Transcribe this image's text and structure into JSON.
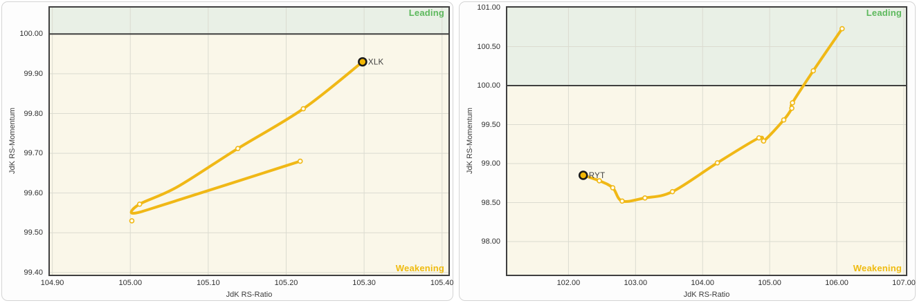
{
  "colors": {
    "tail": "#F0B816",
    "head_fill": "#F2B705",
    "head_stroke": "#1a1a1a",
    "marker_fill": "#FFFCEE",
    "leading_text": "#5CB85C",
    "weakening_text": "#EFBB0F",
    "leading_bg": "#E9F0E6",
    "weakening_bg": "#FAF7E9",
    "grid": "#DBDBD0",
    "frame": "#3f3f3f",
    "symbol_label_text": "#3f3f3f"
  },
  "chart_data": [
    {
      "type": "line",
      "title": "XLK RRG tail",
      "symbol": "XLK",
      "xlabel": "JdK RS-Ratio",
      "ylabel": "JdK RS-Momentum",
      "xlim": [
        104.895,
        105.41
      ],
      "ylim": [
        99.391,
        100.07
      ],
      "x_ticks": [
        104.9,
        105.0,
        105.1,
        105.2,
        105.3,
        105.4
      ],
      "y_ticks": [
        99.4,
        99.5,
        99.6,
        99.7,
        99.8,
        99.9,
        100.0
      ],
      "center_line_y": 100.0,
      "grid": true,
      "quadrants": {
        "top_label": "Leading",
        "bottom_label": "Weakening"
      },
      "head": {
        "x": 105.298,
        "y": 99.93,
        "label": "XLK"
      },
      "tail_curve": [
        [
          105.218,
          99.68
        ],
        [
          105.05,
          99.575
        ],
        [
          105.004,
          99.549
        ],
        [
          105.012,
          99.572
        ],
        [
          105.06,
          99.615
        ],
        [
          105.138,
          99.712
        ],
        [
          105.222,
          99.812
        ],
        [
          105.298,
          99.93
        ]
      ],
      "point_markers": [
        [
          105.218,
          99.68
        ],
        [
          105.002,
          99.53
        ],
        [
          105.012,
          99.572
        ],
        [
          105.138,
          99.712
        ],
        [
          105.222,
          99.812
        ]
      ]
    },
    {
      "type": "line",
      "title": "RYT RRG tail",
      "symbol": "RYT",
      "xlabel": "JdK RS-Ratio",
      "ylabel": "JdK RS-Momentum",
      "xlim": [
        101.067,
        107.052
      ],
      "ylim": [
        97.558,
        101.018
      ],
      "x_ticks": [
        102.0,
        103.0,
        104.0,
        105.0,
        106.0,
        107.0
      ],
      "y_ticks": [
        98.0,
        98.5,
        99.0,
        99.5,
        100.0,
        100.5,
        101.0
      ],
      "center_line_y": 100.0,
      "grid": true,
      "quadrants": {
        "top_label": "Leading",
        "bottom_label": "Weakening"
      },
      "head": {
        "x": 102.22,
        "y": 98.85,
        "label": "RYT"
      },
      "tail_curve": [
        [
          102.22,
          98.85
        ],
        [
          102.46,
          98.78
        ],
        [
          102.66,
          98.69
        ],
        [
          102.8,
          98.52
        ],
        [
          103.14,
          98.56
        ],
        [
          103.55,
          98.64
        ],
        [
          104.22,
          99.01
        ],
        [
          104.84,
          99.33
        ],
        [
          104.91,
          99.29
        ],
        [
          105.21,
          99.56
        ],
        [
          105.33,
          99.71
        ],
        [
          105.34,
          99.78
        ],
        [
          105.65,
          100.19
        ],
        [
          106.08,
          100.73
        ]
      ],
      "point_markers": [
        [
          102.46,
          98.78
        ],
        [
          102.66,
          98.69
        ],
        [
          102.8,
          98.52
        ],
        [
          103.14,
          98.56
        ],
        [
          103.55,
          98.64
        ],
        [
          104.22,
          99.01
        ],
        [
          104.84,
          99.33
        ],
        [
          104.91,
          99.29
        ],
        [
          105.21,
          99.56
        ],
        [
          105.33,
          99.71
        ],
        [
          105.34,
          99.78
        ],
        [
          105.65,
          100.19
        ],
        [
          106.08,
          100.73
        ]
      ]
    }
  ]
}
